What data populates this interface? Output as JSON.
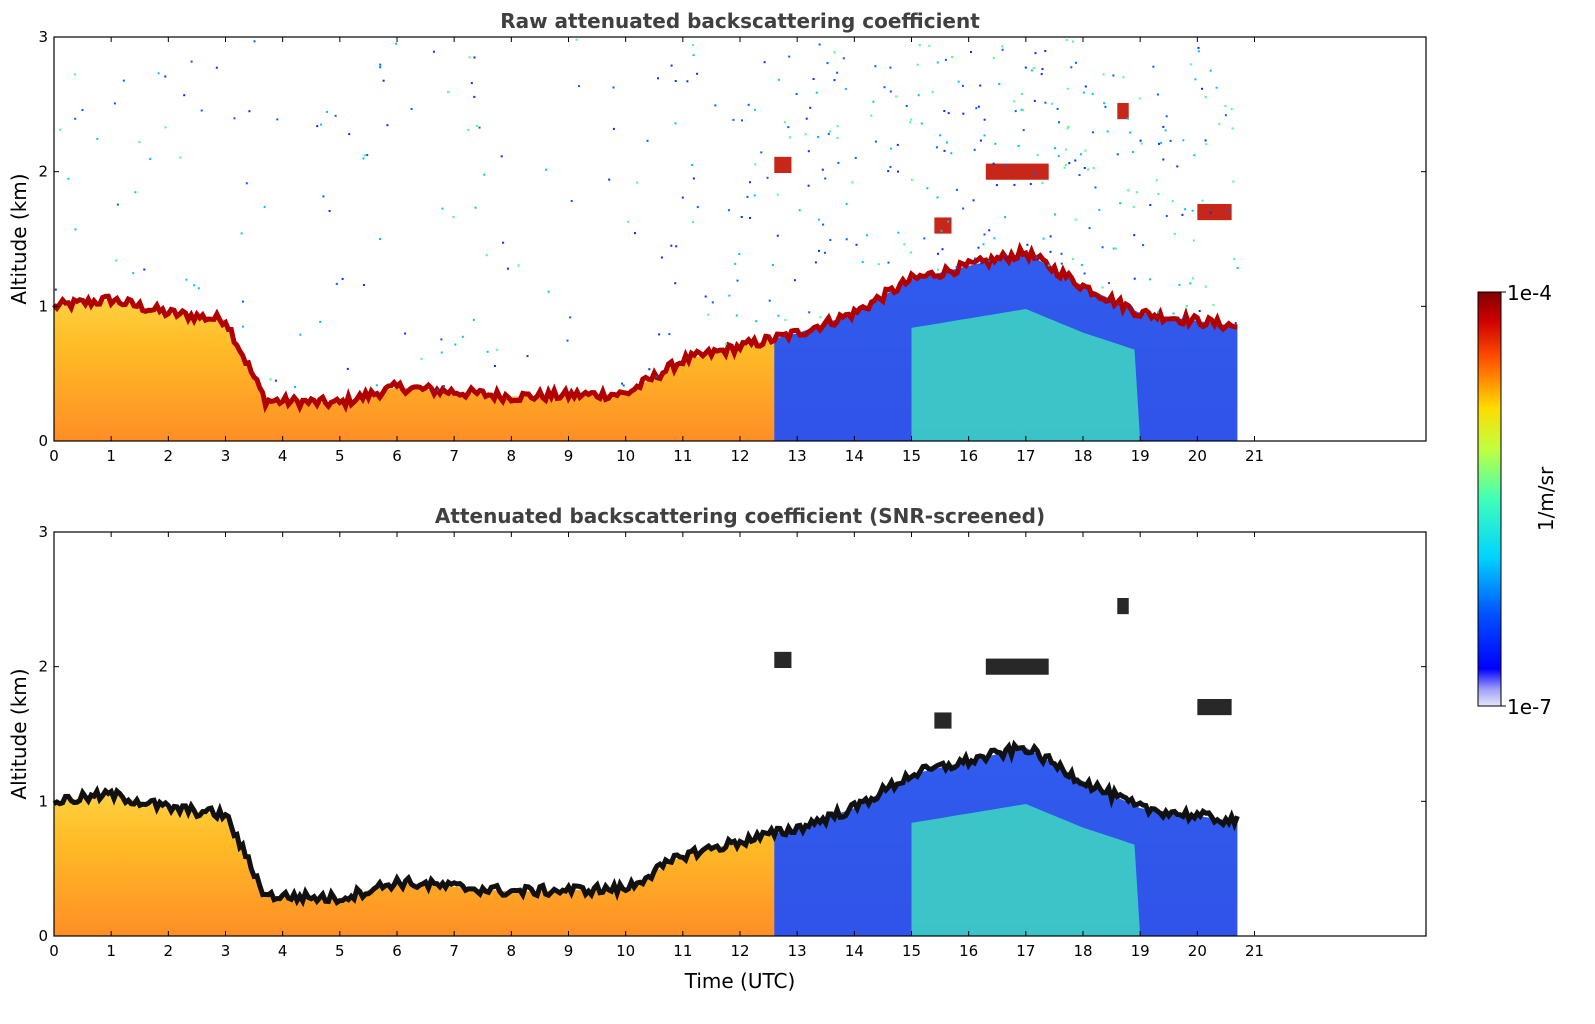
{
  "chart_data": [
    {
      "type": "heatmap",
      "title": "Raw attenuated backscattering coefficient",
      "xlabel": "",
      "ylabel": "Altitude (km)",
      "xlim": [
        0,
        24
      ],
      "ylim": [
        0,
        3
      ],
      "x_ticks": [
        "0",
        "1",
        "2",
        "3",
        "4",
        "5",
        "6",
        "7",
        "8",
        "9",
        "10",
        "11",
        "12",
        "13",
        "14",
        "15",
        "16",
        "17",
        "18",
        "19",
        "20",
        "21"
      ],
      "y_ticks": [
        "0",
        "1",
        "2",
        "3"
      ],
      "data_end_hour": 20.7,
      "colormap": "jet",
      "clim": [
        "1e-7",
        "1e-4"
      ],
      "boundary_layer": [
        {
          "x": 0,
          "top": 1.0
        },
        {
          "x": 1,
          "top": 1.05
        },
        {
          "x": 2,
          "top": 0.95
        },
        {
          "x": 3,
          "top": 0.9
        },
        {
          "x": 3.7,
          "top": 0.3
        },
        {
          "x": 5,
          "top": 0.28
        },
        {
          "x": 6,
          "top": 0.4
        },
        {
          "x": 8,
          "top": 0.33
        },
        {
          "x": 10,
          "top": 0.35
        },
        {
          "x": 11,
          "top": 0.6
        },
        {
          "x": 12,
          "top": 0.7
        },
        {
          "x": 13,
          "top": 0.8
        },
        {
          "x": 14,
          "top": 0.95
        },
        {
          "x": 15,
          "top": 1.2
        },
        {
          "x": 16,
          "top": 1.3
        },
        {
          "x": 17,
          "top": 1.4
        },
        {
          "x": 18,
          "top": 1.15
        },
        {
          "x": 19,
          "top": 0.95
        },
        {
          "x": 20.7,
          "top": 0.85
        }
      ],
      "elevated_layers": [
        {
          "x0": 12.6,
          "x1": 12.9,
          "y": 2.05
        },
        {
          "x0": 15.4,
          "x1": 15.7,
          "y": 1.6
        },
        {
          "x0": 16.3,
          "x1": 17.4,
          "y": 2.0
        },
        {
          "x0": 18.6,
          "x1": 18.8,
          "y": 2.45
        },
        {
          "x0": 20.0,
          "x1": 20.6,
          "y": 1.7
        }
      ]
    },
    {
      "type": "heatmap",
      "title": "Attenuated backscattering coefficient (SNR-screened)",
      "xlabel": "Time (UTC)",
      "ylabel": "Altitude (km)",
      "xlim": [
        0,
        24
      ],
      "ylim": [
        0,
        3
      ],
      "x_ticks": [
        "0",
        "1",
        "2",
        "3",
        "4",
        "5",
        "6",
        "7",
        "8",
        "9",
        "10",
        "11",
        "12",
        "13",
        "14",
        "15",
        "16",
        "17",
        "18",
        "19",
        "20",
        "21"
      ],
      "y_ticks": [
        "0",
        "1",
        "2",
        "3"
      ],
      "data_end_hour": 20.7,
      "colormap": "jet",
      "clim": [
        "1e-7",
        "1e-4"
      ]
    }
  ],
  "colorbar": {
    "max_label": "1e-4",
    "min_label": "1e-7",
    "label": "1/m/sr"
  }
}
